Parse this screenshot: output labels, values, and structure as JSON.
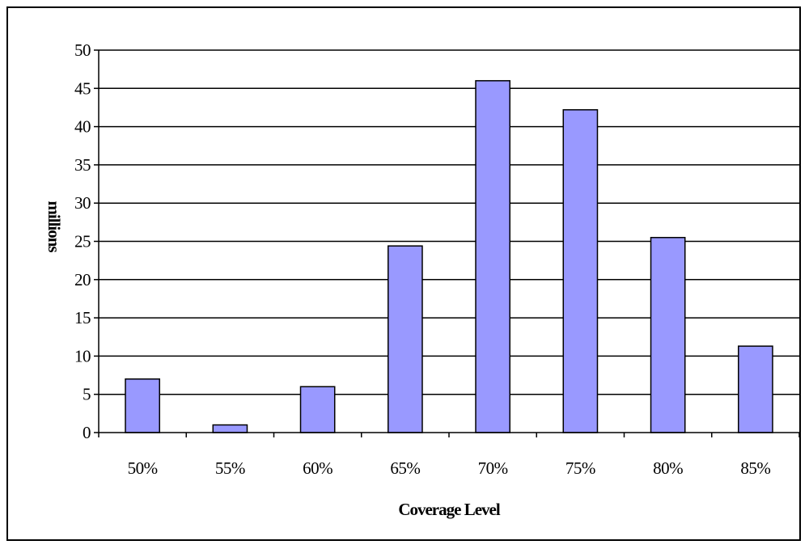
{
  "chart_data": {
    "type": "bar",
    "title": "",
    "xlabel": "Coverage Level",
    "ylabel": "millions",
    "categories": [
      "50%",
      "55%",
      "60%",
      "65%",
      "70%",
      "75%",
      "80%",
      "85%"
    ],
    "values": [
      7,
      1,
      6,
      24.4,
      46,
      42.2,
      25.5,
      11.3
    ],
    "ylim": [
      0,
      50
    ],
    "yticks": [
      "0",
      "5",
      "10",
      "15",
      "20",
      "25",
      "30",
      "35",
      "40",
      "45",
      "50"
    ],
    "grid": true,
    "legend": "none",
    "bar_color": "#9999ff",
    "bar_outline": "#000000"
  }
}
